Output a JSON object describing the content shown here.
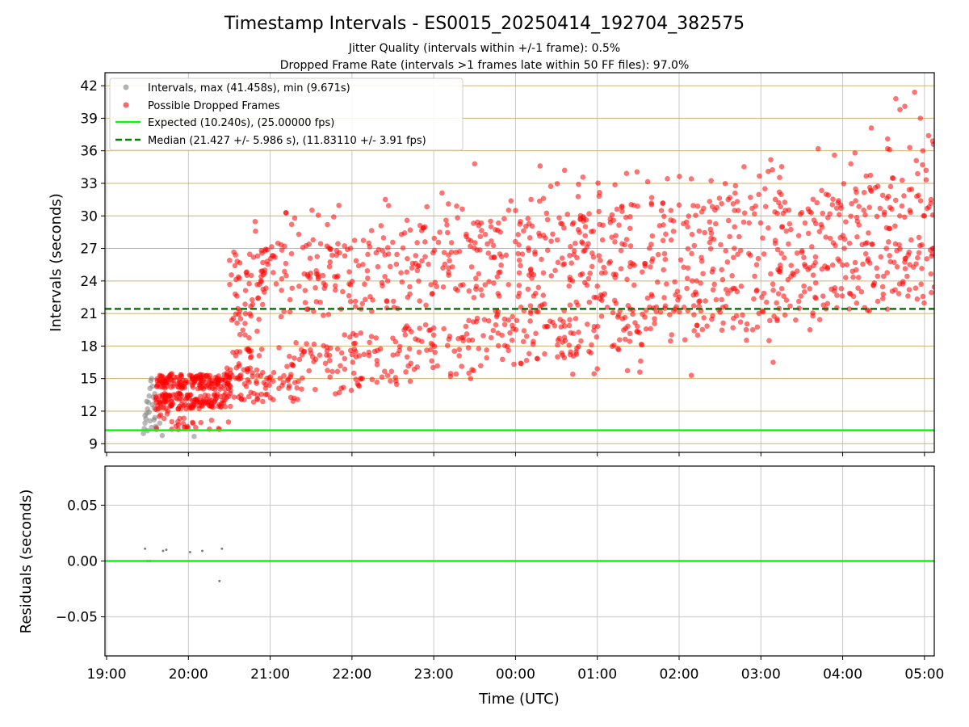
{
  "chart_data": [
    {
      "type": "scatter",
      "title": "Timestamp Intervals - ES0015_20250414_192704_382575",
      "subtitle_lines": [
        "Jitter Quality (intervals within +/-1 frame): 0.5%",
        "Dropped Frame Rate (intervals >1 frames late within 50 FF files): 97.0%"
      ],
      "xlabel": "",
      "ylabel": "Intervals (seconds)",
      "x_unit": "hours since 19:00 UTC",
      "xlim": [
        -0.02,
        10.12
      ],
      "ylim": [
        8.2,
        43.2
      ],
      "y_ticks": [
        9,
        12,
        15,
        18,
        21,
        24,
        27,
        30,
        33,
        36,
        39,
        42
      ],
      "grid": true,
      "legend_position": "top-left",
      "series": [
        {
          "name": "Intervals, max (41.458s), min (9.671s)",
          "color": "#808080",
          "points": [
            [
              0.45,
              9.95
            ],
            [
              0.46,
              10.4
            ],
            [
              0.47,
              10.9
            ],
            [
              0.48,
              11.3
            ],
            [
              0.49,
              11.8
            ],
            [
              0.5,
              12.2
            ],
            [
              0.51,
              12.8
            ],
            [
              0.52,
              13.4
            ],
            [
              0.53,
              14.1
            ],
            [
              0.54,
              14.8
            ],
            [
              0.55,
              15.0
            ],
            [
              0.56,
              14.3
            ],
            [
              0.57,
              13.3
            ],
            [
              0.58,
              12.3
            ],
            [
              0.59,
              11.4
            ],
            [
              0.6,
              10.6
            ],
            [
              0.47,
              11.6
            ],
            [
              0.5,
              10.2
            ],
            [
              0.53,
              11.1
            ],
            [
              0.56,
              12.6
            ],
            [
              0.59,
              13.6
            ],
            [
              0.62,
              12.1
            ],
            [
              0.65,
              10.9
            ],
            [
              0.68,
              9.75
            ],
            [
              0.49,
              12.9
            ],
            [
              0.52,
              11.9
            ],
            [
              0.55,
              10.5
            ],
            [
              0.58,
              11.2
            ],
            [
              0.61,
              10.3
            ],
            [
              1.07,
              9.67
            ]
          ]
        },
        {
          "name": "Possible Dropped Frames",
          "color": "#ff0000",
          "clusters": [
            {
              "x": [
                0.6,
                1.55
              ],
              "y": [
                14.0,
                15.4
              ],
              "n": 140
            },
            {
              "x": [
                0.6,
                1.55
              ],
              "y": [
                12.2,
                13.6
              ],
              "n": 120
            },
            {
              "x": [
                0.6,
                1.0
              ],
              "y": [
                10.3,
                16.0
              ],
              "n": 30
            },
            {
              "x": [
                0.75,
                1.55
              ],
              "y": [
                10.2,
                11.2
              ],
              "n": 16
            },
            {
              "x": [
                1.45,
                2.0
              ],
              "y": [
                13.0,
                16.0
              ],
              "n": 40
            },
            {
              "x": [
                1.5,
                1.9
              ],
              "y": [
                17.0,
                25.0
              ],
              "n": 24
            },
            {
              "x": [
                1.5,
                10.12
              ],
              "y": [
                12.0,
                17.5
              ],
              "y_end": [
                22.0,
                27.5
              ],
              "n": 560
            },
            {
              "x": [
                1.5,
                10.12
              ],
              "y": [
                20.0,
                27.0
              ],
              "y_end": [
                26.0,
                34.0
              ],
              "n": 560
            },
            {
              "x": [
                1.7,
                10.12
              ],
              "y": [
                23.0,
                30.0
              ],
              "y_end": [
                30.0,
                37.5
              ],
              "n": 170
            },
            {
              "x": [
                3.8,
                9.0
              ],
              "y": [
                15.0,
                20.0
              ],
              "n": 8
            }
          ],
          "outliers": [
            [
              2.3,
              29.8
            ],
            [
              2.35,
              28.3
            ],
            [
              2.7,
              29.2
            ],
            [
              4.5,
              34.8
            ],
            [
              5.3,
              34.6
            ],
            [
              5.6,
              34.2
            ],
            [
              8.7,
              36.2
            ],
            [
              8.9,
              35.6
            ],
            [
              9.1,
              34.8
            ],
            [
              9.15,
              35.8
            ],
            [
              9.55,
              36.2
            ],
            [
              9.65,
              40.8
            ],
            [
              9.7,
              39.8
            ],
            [
              10.05,
              37.4
            ],
            [
              10.1,
              36.9
            ],
            [
              10.02,
              34.2
            ],
            [
              9.76,
              40.1
            ],
            [
              9.88,
              41.4
            ],
            [
              9.95,
              39.0
            ],
            [
              10.11,
              36.6
            ],
            [
              9.35,
              38.1
            ],
            [
              9.55,
              37.1
            ],
            [
              5.0,
              30.5
            ],
            [
              6.3,
              30.8
            ],
            [
              7.6,
              31.5
            ],
            [
              8.05,
              32.5
            ],
            [
              8.5,
              30.3
            ],
            [
              8.95,
              31.4
            ],
            [
              9.4,
              32.6
            ],
            [
              9.82,
              36.3
            ],
            [
              9.9,
              35.1
            ],
            [
              4.28,
              30.9
            ],
            [
              4.55,
              29.1
            ],
            [
              4.15,
              29.6
            ],
            [
              4.7,
              29.0
            ],
            [
              5.9,
              30.2
            ],
            [
              7.0,
              31.0
            ],
            [
              7.3,
              30.7
            ],
            [
              6.9,
              30.5
            ],
            [
              8.3,
              30.5
            ],
            [
              9.98,
              36.0
            ],
            [
              10.08,
              31.5
            ],
            [
              10.11,
              27.0
            ],
            [
              10.1,
              26.5
            ],
            [
              9.82,
              25.5
            ],
            [
              9.18,
              29.5
            ],
            [
              7.9,
              19.5
            ],
            [
              8.1,
              18.5
            ],
            [
              8.15,
              16.5
            ],
            [
              8.6,
              19.5
            ],
            [
              6.52,
              15.6
            ],
            [
              5.7,
              15.4
            ],
            [
              4.45,
              15.0
            ],
            [
              7.15,
              15.3
            ],
            [
              6.0,
              15.9
            ],
            [
              9.23,
              23.0
            ],
            [
              9.02,
              27.0
            ],
            [
              9.56,
              27.6
            ],
            [
              9.49,
              31.9
            ],
            [
              10.0,
              30.0
            ]
          ]
        }
      ],
      "reference_lines": [
        {
          "name": "Expected (10.240s), (25.00000 fps)",
          "y": 10.24,
          "color": "#00ff00",
          "style": "solid"
        },
        {
          "name": "Median (21.427 +/- 5.986 s), (11.83110 +/- 3.91 fps)",
          "y": 21.427,
          "color": "#008000",
          "style": "dashed"
        }
      ]
    },
    {
      "type": "scatter",
      "xlabel": "Time (UTC)",
      "ylabel": "Residuals (seconds)",
      "xlim": [
        -0.02,
        10.12
      ],
      "ylim": [
        -0.085,
        0.085
      ],
      "y_ticks": [
        -0.05,
        0.0,
        0.05
      ],
      "y_tick_labels": [
        "−0.05",
        "0.00",
        "0.05"
      ],
      "x_ticks": [
        0,
        1,
        2,
        3,
        4,
        5,
        6,
        7,
        8,
        9,
        10
      ],
      "x_tick_labels": [
        "19:00",
        "20:00",
        "21:00",
        "22:00",
        "23:00",
        "00:00",
        "01:00",
        "02:00",
        "03:00",
        "04:00",
        "05:00"
      ],
      "grid": true,
      "series": [
        {
          "color": "#808080",
          "points": [
            [
              0.47,
              0.011
            ],
            [
              0.5,
              0.0
            ],
            [
              0.53,
              0.0
            ],
            [
              0.69,
              0.009
            ],
            [
              0.73,
              0.01
            ],
            [
              1.02,
              0.008
            ],
            [
              1.17,
              0.009
            ],
            [
              1.38,
              -0.018
            ],
            [
              1.41,
              0.011
            ]
          ]
        }
      ],
      "reference_lines": [
        {
          "y": 0.0,
          "color": "#00ff00",
          "style": "solid"
        }
      ]
    }
  ]
}
